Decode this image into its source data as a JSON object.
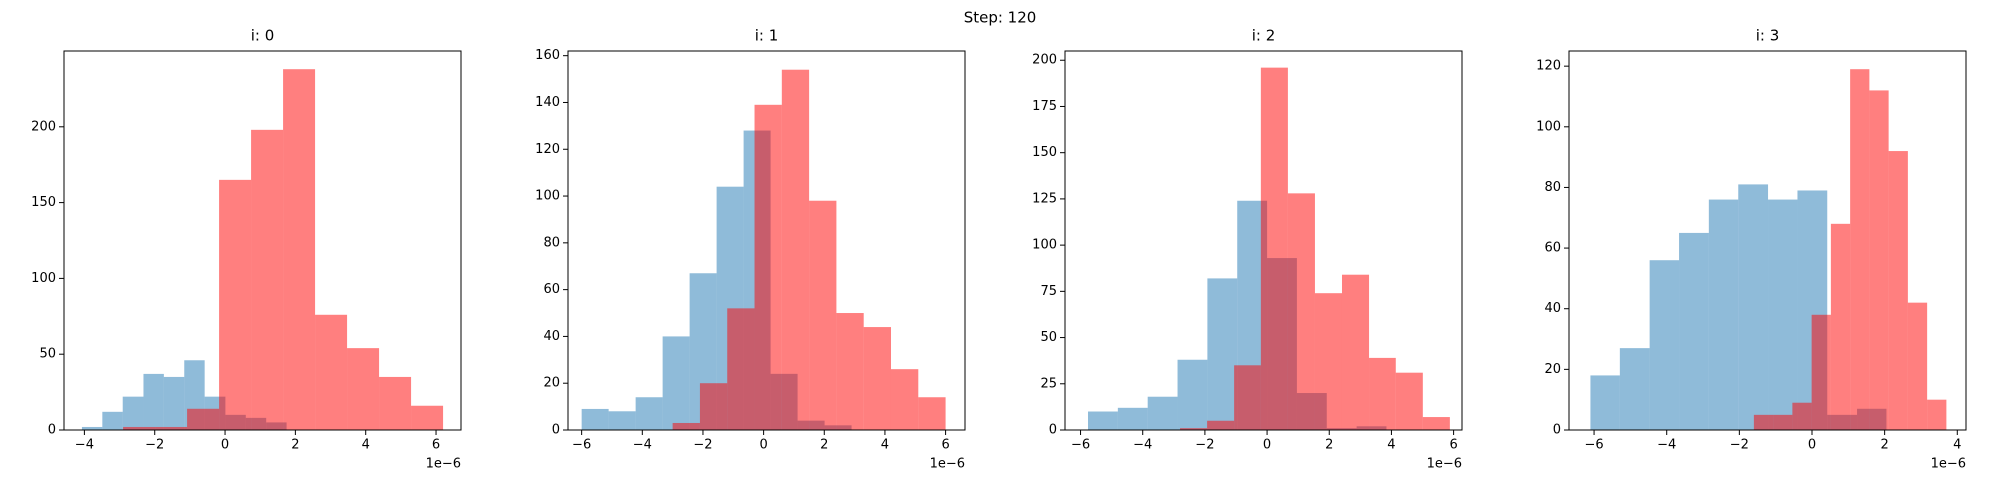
{
  "title": "Step: 120",
  "chart_data": [
    {
      "type": "histogram",
      "title": "i: 0",
      "x_offset_label": "1e−6",
      "xlim": [
        -4.58,
        6.71
      ],
      "ylim": [
        0,
        250
      ],
      "xticks": [
        {
          "value": -4,
          "label": "−4"
        },
        {
          "value": -2,
          "label": "−2"
        },
        0,
        2,
        4,
        6
      ],
      "yticks": [
        0,
        50,
        100,
        150,
        200
      ],
      "series": [
        {
          "color": "#1f77b4",
          "opacity": 0.5,
          "bins": [
            -4.07,
            -3.49,
            -2.91,
            -2.32,
            -1.74,
            -1.16,
            -0.58,
            0.01,
            0.59,
            1.17,
            1.75
          ],
          "values": [
            2,
            12,
            22,
            37,
            35,
            46,
            22,
            10,
            8,
            5
          ]
        },
        {
          "color": "#ff0000",
          "opacity": 0.5,
          "bins": [
            -2.9,
            -1.99,
            -1.08,
            -0.17,
            0.74,
            1.65,
            2.56,
            3.47,
            4.38,
            5.29,
            6.2
          ],
          "values": [
            2,
            2,
            14,
            165,
            198,
            238,
            76,
            54,
            35,
            16
          ]
        }
      ]
    },
    {
      "type": "histogram",
      "title": "i: 1",
      "x_offset_label": "1e−6",
      "xlim": [
        -6.45,
        6.64
      ],
      "ylim": [
        0,
        162
      ],
      "xticks": [
        {
          "value": -6,
          "label": "−6"
        },
        {
          "value": -4,
          "label": "−4"
        },
        {
          "value": -2,
          "label": "−2"
        },
        0,
        2,
        4,
        6
      ],
      "yticks": [
        0,
        20,
        40,
        60,
        80,
        100,
        120,
        140,
        160
      ],
      "series": [
        {
          "color": "#1f77b4",
          "opacity": 0.5,
          "bins": [
            -6,
            -5.11,
            -4.22,
            -3.33,
            -2.44,
            -1.55,
            -0.66,
            0.23,
            1.12,
            2.01,
            2.9
          ],
          "values": [
            9,
            8,
            14,
            40,
            67,
            104,
            128,
            24,
            4,
            2
          ]
        },
        {
          "color": "#ff0000",
          "opacity": 0.5,
          "bins": [
            -3,
            -2.1,
            -1.2,
            -0.3,
            0.6,
            1.5,
            2.4,
            3.3,
            4.2,
            5.1,
            6.0
          ],
          "values": [
            3,
            20,
            52,
            139,
            154,
            98,
            50,
            44,
            26,
            14
          ]
        }
      ]
    },
    {
      "type": "histogram",
      "title": "i: 2",
      "x_offset_label": "1e−6",
      "xlim": [
        -6.5,
        6.27
      ],
      "ylim": [
        0,
        205
      ],
      "xticks": [
        {
          "value": -6,
          "label": "−6"
        },
        {
          "value": -4,
          "label": "−4"
        },
        {
          "value": -2,
          "label": "−2"
        },
        0,
        2,
        4,
        6
      ],
      "yticks": [
        0,
        25,
        50,
        75,
        100,
        125,
        150,
        175,
        200
      ],
      "series": [
        {
          "color": "#1f77b4",
          "opacity": 0.5,
          "bins": [
            -5.76,
            -4.8,
            -3.84,
            -2.88,
            -1.92,
            -0.96,
            0,
            0.96,
            1.92,
            2.88,
            3.84
          ],
          "values": [
            10,
            12,
            18,
            38,
            82,
            124,
            93,
            20,
            1,
            2
          ]
        },
        {
          "color": "#ff0000",
          "opacity": 0.5,
          "bins": [
            -2.8,
            -1.93,
            -1.06,
            -0.2,
            0.67,
            1.54,
            2.41,
            3.28,
            4.14,
            5.01,
            5.88
          ],
          "values": [
            1,
            5,
            35,
            196,
            128,
            74,
            84,
            39,
            31,
            7
          ]
        }
      ]
    },
    {
      "type": "histogram",
      "title": "i: 3",
      "x_offset_label": "1e−6",
      "xlim": [
        -6.69,
        4.24
      ],
      "ylim": [
        0,
        125
      ],
      "xticks": [
        {
          "value": -6,
          "label": "−6"
        },
        {
          "value": -4,
          "label": "−4"
        },
        {
          "value": -2,
          "label": "−2"
        },
        0,
        2,
        4
      ],
      "yticks": [
        0,
        20,
        40,
        60,
        80,
        100,
        120
      ],
      "series": [
        {
          "color": "#1f77b4",
          "opacity": 0.5,
          "bins": [
            -6.1,
            -5.29,
            -4.47,
            -3.66,
            -2.84,
            -2.03,
            -1.21,
            -0.4,
            0.42,
            1.24,
            2.05
          ],
          "values": [
            18,
            27,
            56,
            65,
            76,
            81,
            76,
            79,
            5,
            7
          ]
        },
        {
          "color": "#ff0000",
          "opacity": 0.5,
          "bins": [
            -1.6,
            -1.07,
            -0.54,
            -0.01,
            0.52,
            1.05,
            1.58,
            2.11,
            2.64,
            3.17,
            3.7
          ],
          "values": [
            5,
            5,
            9,
            38,
            68,
            119,
            112,
            92,
            42,
            10
          ]
        }
      ]
    }
  ]
}
